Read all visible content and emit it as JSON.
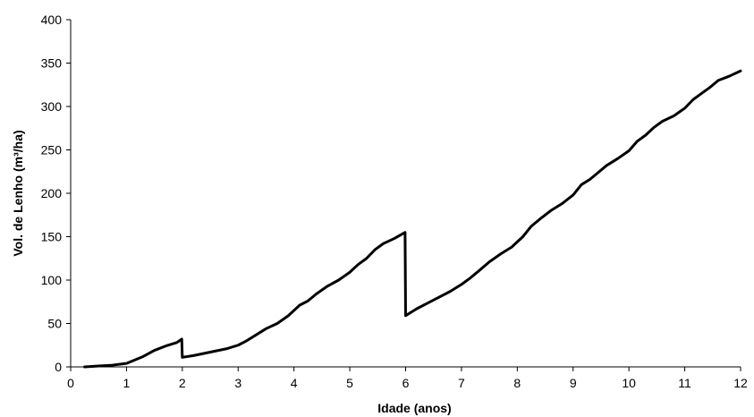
{
  "chart_data": {
    "type": "line",
    "xlabel": "Idade (anos)",
    "ylabel": "Vol. de Lenho (m³/ha)",
    "xlim": [
      0,
      12
    ],
    "ylim": [
      0,
      400
    ],
    "xticks": [
      0,
      1,
      2,
      3,
      4,
      5,
      6,
      7,
      8,
      9,
      10,
      11,
      12
    ],
    "yticks": [
      0,
      50,
      100,
      150,
      200,
      250,
      300,
      350,
      400
    ],
    "grid": false,
    "legend": "none",
    "line_color": "#000000",
    "series": [
      {
        "x": [
          0.25,
          0.5,
          0.75,
          1.0,
          1.15,
          1.3,
          1.5,
          1.7,
          1.9,
          1.99,
          2.0,
          2.2,
          2.5,
          2.8,
          3.0,
          3.15,
          3.3,
          3.5,
          3.7,
          3.9,
          4.1,
          4.25,
          4.4,
          4.6,
          4.8,
          5.0,
          5.15,
          5.3,
          5.45,
          5.6,
          5.8,
          5.99,
          6.0,
          6.2,
          6.5,
          6.8,
          7.0,
          7.15,
          7.3,
          7.5,
          7.7,
          7.9,
          8.1,
          8.25,
          8.4,
          8.6,
          8.8,
          9.0,
          9.15,
          9.3,
          9.45,
          9.6,
          9.8,
          10.0,
          10.15,
          10.3,
          10.45,
          10.6,
          10.8,
          11.0,
          11.15,
          11.3,
          11.45,
          11.6,
          11.8,
          12.0
        ],
        "values": [
          0,
          1,
          2,
          4,
          8,
          12,
          19,
          24,
          28,
          32,
          11,
          13,
          17,
          21,
          25,
          30,
          36,
          44,
          50,
          59,
          71,
          76,
          84,
          93,
          100,
          109,
          118,
          125,
          135,
          142,
          148,
          155,
          59,
          67,
          77,
          87,
          95,
          102,
          110,
          121,
          130,
          138,
          150,
          162,
          170,
          180,
          188,
          198,
          210,
          216,
          224,
          232,
          240,
          249,
          260,
          267,
          276,
          283,
          289,
          298,
          308,
          315,
          322,
          330,
          335,
          341
        ]
      }
    ]
  }
}
